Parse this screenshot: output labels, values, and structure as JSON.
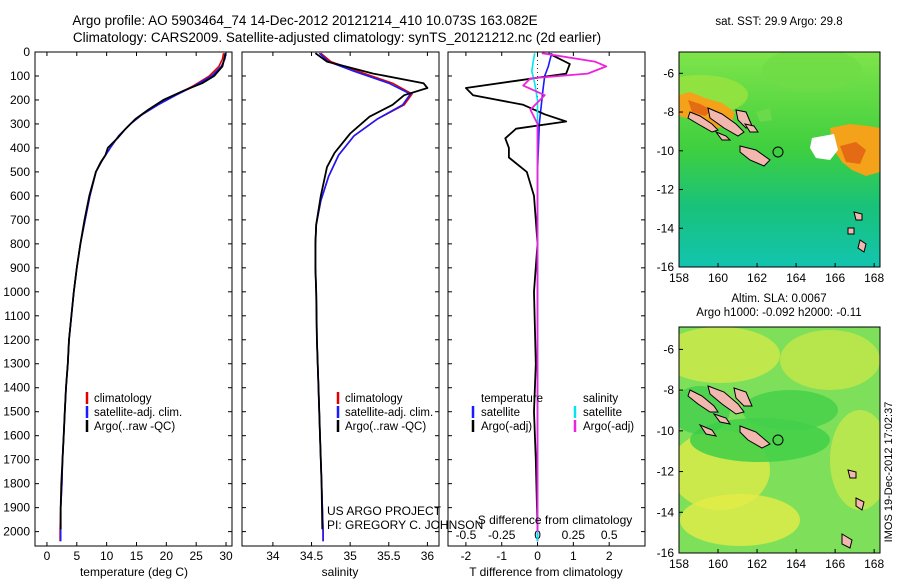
{
  "header": {
    "title_line1": "Argo profile: AO 5903464_74 14-Dec-2012 20121214_410 10.073S 163.082E",
    "title_line2": "Climatology: CARS2009. Satellite-adjusted climatology: synTS_20121212.nc (2d earlier)"
  },
  "side_stamp": "IMOS 19-Dec-2012 17:02:37",
  "colors": {
    "climatology": "#e00000",
    "satellite": "#1a1aff",
    "argo": "#000000",
    "sal_satellite": "#00e5ee",
    "sal_argo": "#ee22dd"
  },
  "chart_data": [
    {
      "type": "line",
      "title": "",
      "xlabel": "temperature (deg C)",
      "ylabel": "",
      "xlim": [
        -2,
        31
      ],
      "ylim": [
        2060,
        0
      ],
      "xticks": [
        0,
        5,
        10,
        15,
        20,
        25,
        30
      ],
      "yticks": [
        0,
        100,
        200,
        300,
        400,
        500,
        600,
        700,
        800,
        900,
        1000,
        1100,
        1200,
        1300,
        1400,
        1500,
        1600,
        1700,
        1800,
        1900,
        2000
      ],
      "legend": [
        "climatology",
        "satellite-adj. clim.",
        "Argo(..raw -QC)"
      ],
      "legend_position": "lower-center",
      "series": [
        {
          "name": "climatology",
          "points": [
            [
              29.6,
              5
            ],
            [
              29.4,
              30
            ],
            [
              28.8,
              60
            ],
            [
              27.2,
              100
            ],
            [
              24.6,
              140
            ],
            [
              21.5,
              180
            ],
            [
              18.6,
              220
            ],
            [
              16.0,
              260
            ],
            [
              14.0,
              300
            ],
            [
              12.0,
              350
            ],
            [
              10.6,
              400
            ],
            [
              9.3,
              450
            ],
            [
              8.2,
              500
            ],
            [
              7.2,
              600
            ],
            [
              6.4,
              700
            ],
            [
              5.6,
              800
            ],
            [
              5.0,
              900
            ],
            [
              4.5,
              1000
            ],
            [
              4.1,
              1100
            ],
            [
              3.7,
              1200
            ],
            [
              3.5,
              1300
            ],
            [
              3.2,
              1400
            ],
            [
              3.0,
              1500
            ],
            [
              2.8,
              1600
            ],
            [
              2.6,
              1700
            ],
            [
              2.5,
              1800
            ],
            [
              2.3,
              1900
            ],
            [
              2.2,
              2000
            ],
            [
              2.2,
              2040
            ]
          ]
        },
        {
          "name": "satellite-adj. clim.",
          "points": [
            [
              30.0,
              5
            ],
            [
              29.8,
              30
            ],
            [
              29.2,
              60
            ],
            [
              27.6,
              100
            ],
            [
              24.8,
              140
            ],
            [
              21.6,
              180
            ],
            [
              18.6,
              220
            ],
            [
              16.0,
              260
            ],
            [
              14.0,
              300
            ],
            [
              12.0,
              350
            ],
            [
              10.6,
              400
            ],
            [
              9.3,
              450
            ],
            [
              8.2,
              500
            ],
            [
              7.2,
              600
            ],
            [
              6.4,
              700
            ],
            [
              5.6,
              800
            ],
            [
              5.0,
              900
            ],
            [
              4.5,
              1000
            ],
            [
              4.1,
              1100
            ],
            [
              3.7,
              1200
            ],
            [
              3.5,
              1300
            ],
            [
              3.2,
              1400
            ],
            [
              3.0,
              1500
            ],
            [
              2.8,
              1600
            ],
            [
              2.6,
              1700
            ],
            [
              2.5,
              1800
            ],
            [
              2.3,
              1900
            ],
            [
              2.3,
              2000
            ],
            [
              2.3,
              2040
            ]
          ]
        },
        {
          "name": "Argo(..raw -QC)",
          "points": [
            [
              29.9,
              5
            ],
            [
              29.7,
              30
            ],
            [
              29.4,
              60
            ],
            [
              28.0,
              100
            ],
            [
              26.0,
              130
            ],
            [
              23.0,
              160
            ],
            [
              19.5,
              200
            ],
            [
              17.0,
              240
            ],
            [
              14.8,
              280
            ],
            [
              13.2,
              320
            ],
            [
              11.8,
              360
            ],
            [
              10.2,
              400
            ],
            [
              9.8,
              430
            ],
            [
              9.0,
              460
            ],
            [
              8.2,
              500
            ],
            [
              7.1,
              600
            ],
            [
              6.3,
              700
            ],
            [
              5.6,
              800
            ],
            [
              5.0,
              900
            ],
            [
              4.5,
              1000
            ],
            [
              4.1,
              1100
            ],
            [
              3.7,
              1200
            ],
            [
              3.5,
              1300
            ],
            [
              3.2,
              1400
            ],
            [
              3.0,
              1500
            ],
            [
              2.8,
              1600
            ],
            [
              2.6,
              1700
            ],
            [
              2.4,
              1800
            ],
            [
              2.3,
              1900
            ],
            [
              2.3,
              1990
            ]
          ]
        }
      ]
    },
    {
      "type": "line",
      "title": "",
      "xlabel": "salinity",
      "ylabel": "",
      "xlim": [
        33.6,
        36.15
      ],
      "ylim": [
        2060,
        0
      ],
      "xticks": [
        34,
        34.5,
        35,
        35.5,
        36
      ],
      "legend": [
        "climatology",
        "satellite-adj. clim.",
        "Argo(..raw -QC)"
      ],
      "legend_position": "lower-center",
      "annotation": [
        "US ARGO PROJECT",
        "PI: GREGORY C. JOHNSON"
      ],
      "series": [
        {
          "name": "climatology",
          "points": [
            [
              34.62,
              5
            ],
            [
              34.75,
              40
            ],
            [
              35.1,
              80
            ],
            [
              35.55,
              130
            ],
            [
              35.8,
              175
            ],
            [
              35.7,
              220
            ],
            [
              35.35,
              280
            ],
            [
              35.05,
              350
            ],
            [
              34.85,
              430
            ],
            [
              34.72,
              520
            ],
            [
              34.62,
              620
            ],
            [
              34.56,
              720
            ],
            [
              34.55,
              800
            ],
            [
              34.55,
              900
            ],
            [
              34.56,
              1000
            ],
            [
              34.57,
              1200
            ],
            [
              34.59,
              1400
            ],
            [
              34.61,
              1600
            ],
            [
              34.63,
              1800
            ],
            [
              34.65,
              2000
            ],
            [
              34.65,
              2040
            ]
          ]
        },
        {
          "name": "satellite-adj. clim.",
          "points": [
            [
              34.6,
              5
            ],
            [
              34.72,
              40
            ],
            [
              35.05,
              80
            ],
            [
              35.5,
              130
            ],
            [
              35.78,
              175
            ],
            [
              35.68,
              220
            ],
            [
              35.35,
              280
            ],
            [
              35.05,
              350
            ],
            [
              34.85,
              430
            ],
            [
              34.72,
              520
            ],
            [
              34.62,
              620
            ],
            [
              34.56,
              720
            ],
            [
              34.55,
              800
            ],
            [
              34.55,
              900
            ],
            [
              34.56,
              1000
            ],
            [
              34.57,
              1200
            ],
            [
              34.59,
              1400
            ],
            [
              34.61,
              1600
            ],
            [
              34.63,
              1800
            ],
            [
              34.65,
              2000
            ],
            [
              34.65,
              2040
            ]
          ]
        },
        {
          "name": "Argo(..raw -QC)",
          "points": [
            [
              34.55,
              5
            ],
            [
              34.7,
              40
            ],
            [
              35.3,
              90
            ],
            [
              35.95,
              130
            ],
            [
              36.0,
              150
            ],
            [
              35.7,
              180
            ],
            [
              35.55,
              220
            ],
            [
              35.25,
              270
            ],
            [
              35.0,
              340
            ],
            [
              34.8,
              420
            ],
            [
              34.7,
              480
            ],
            [
              34.62,
              600
            ],
            [
              34.56,
              720
            ],
            [
              34.55,
              800
            ],
            [
              34.55,
              900
            ],
            [
              34.56,
              1000
            ],
            [
              34.57,
              1200
            ],
            [
              34.59,
              1400
            ],
            [
              34.61,
              1600
            ],
            [
              34.63,
              1800
            ],
            [
              34.64,
              1990
            ]
          ]
        }
      ]
    },
    {
      "type": "line",
      "title": "",
      "xlabel": "T difference from climatology",
      "xlabel_top": "S difference from climatology",
      "ylabel": "",
      "xlim": [
        -2.5,
        3.0
      ],
      "ylim": [
        2060,
        0
      ],
      "xticks": [
        -2,
        -1,
        0,
        1,
        2
      ],
      "xticks_s": [
        -0.5,
        -0.25,
        0,
        0.25,
        0.5
      ],
      "s_scale": 4,
      "legend_groups": [
        {
          "title": "temperature",
          "items": [
            "satellite",
            "Argo(-adj)"
          ]
        },
        {
          "title": "salinity",
          "items": [
            "satellite",
            "Argo(-adj)"
          ]
        }
      ],
      "legend_position": "lower-center",
      "series": [
        {
          "name": "temperature satellite",
          "points": [
            [
              0.4,
              5
            ],
            [
              0.35,
              30
            ],
            [
              0.3,
              60
            ],
            [
              0.2,
              100
            ],
            [
              0.15,
              160
            ],
            [
              0.05,
              300
            ],
            [
              0.0,
              500
            ],
            [
              0.0,
              1000
            ],
            [
              0.0,
              2000
            ],
            [
              0.0,
              2040
            ]
          ]
        },
        {
          "name": "temperature Argo(-adj)",
          "points": [
            [
              0.3,
              5
            ],
            [
              0.5,
              20
            ],
            [
              0.9,
              50
            ],
            [
              0.8,
              90
            ],
            [
              -0.6,
              120
            ],
            [
              -2.0,
              150
            ],
            [
              -1.8,
              180
            ],
            [
              -0.4,
              220
            ],
            [
              0.2,
              260
            ],
            [
              0.8,
              290
            ],
            [
              -0.6,
              320
            ],
            [
              -0.9,
              360
            ],
            [
              -0.8,
              400
            ],
            [
              -0.8,
              440
            ],
            [
              -0.3,
              500
            ],
            [
              -0.1,
              600
            ],
            [
              -0.05,
              700
            ],
            [
              0.0,
              800
            ],
            [
              -0.1,
              1000
            ],
            [
              -0.05,
              1300
            ],
            [
              -0.1,
              1500
            ],
            [
              -0.05,
              1700
            ],
            [
              0.0,
              1990
            ]
          ]
        },
        {
          "name": "salinity satellite",
          "points": [
            [
              -0.02,
              5
            ],
            [
              -0.03,
              40
            ],
            [
              -0.04,
              80
            ],
            [
              -0.02,
              130
            ],
            [
              0.0,
              200
            ],
            [
              0.0,
              2040
            ]
          ]
        },
        {
          "name": "salinity Argo(-adj)",
          "points": [
            [
              0.03,
              5
            ],
            [
              0.4,
              40
            ],
            [
              0.48,
              60
            ],
            [
              0.35,
              90
            ],
            [
              -0.05,
              110
            ],
            [
              -0.1,
              140
            ],
            [
              0.05,
              180
            ],
            [
              -0.05,
              240
            ],
            [
              0.0,
              300
            ],
            [
              0.0,
              2000
            ]
          ]
        }
      ]
    },
    {
      "type": "heatmap",
      "title": "sat. SST: 29.9 Argo: 29.8",
      "xticks": [
        158,
        160,
        162,
        164,
        166,
        168
      ],
      "yticks": [
        -6,
        -8,
        -10,
        -12,
        -14,
        -16
      ],
      "xlim": [
        158,
        168.3
      ],
      "ylim": [
        -16,
        -4.9
      ],
      "marker": {
        "lon": 163.08,
        "lat": -10.07
      }
    },
    {
      "type": "heatmap",
      "title": "Altim. SLA: 0.0067",
      "subtitle": "Argo h1000: -0.092 h2000: -0.11",
      "xticks": [
        158,
        160,
        162,
        164,
        166,
        168
      ],
      "yticks": [
        -6,
        -8,
        -10,
        -12,
        -14,
        -16
      ],
      "xlim": [
        158,
        168.3
      ],
      "ylim": [
        -16,
        -4.9
      ],
      "marker": {
        "lon": 163.08,
        "lat": -10.07
      }
    }
  ]
}
